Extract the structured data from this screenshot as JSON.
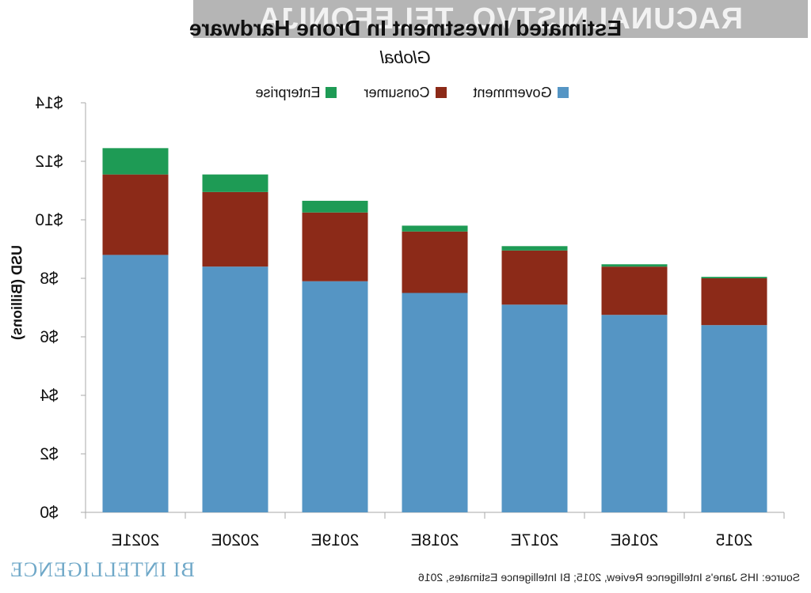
{
  "watermark": "RACUNALNISTVO, TELEFONIJA",
  "brand": "BI INTELLIGENCE",
  "source": "Source: IHS Jane's Intelligence Review, 2015; BI Intelligence Estimates, 2016",
  "colors": {
    "government": "#5595c4",
    "consumer": "#8c2a18",
    "enterprise": "#1e9b55",
    "gridline": "#d9d9d9",
    "axis": "#aaaaaa",
    "background": "#ffffff"
  },
  "chart_data": {
    "type": "bar",
    "stacked": true,
    "title": "Estimated Investment In Drone Hardware",
    "subtitle": "Global",
    "ylabel": "USD (Billions)",
    "xlabel": "",
    "mirrored": true,
    "categories": [
      "2015",
      "2016E",
      "2017E",
      "2018E",
      "2019E",
      "2020E",
      "2021E"
    ],
    "series": [
      {
        "name": "Government",
        "values": [
          6.4,
          6.75,
          7.1,
          7.5,
          7.9,
          8.4,
          8.8
        ]
      },
      {
        "name": "Consumer",
        "values": [
          1.6,
          1.65,
          1.85,
          2.1,
          2.35,
          2.55,
          2.75
        ]
      },
      {
        "name": "Enterprise",
        "values": [
          0.05,
          0.08,
          0.15,
          0.2,
          0.4,
          0.6,
          0.9
        ]
      }
    ],
    "ylim": [
      0,
      14
    ],
    "yticks": [
      "$0",
      "$2",
      "$4",
      "$6",
      "$8",
      "$10",
      "$12",
      "$14"
    ],
    "grid": false,
    "legend_position": "top"
  }
}
